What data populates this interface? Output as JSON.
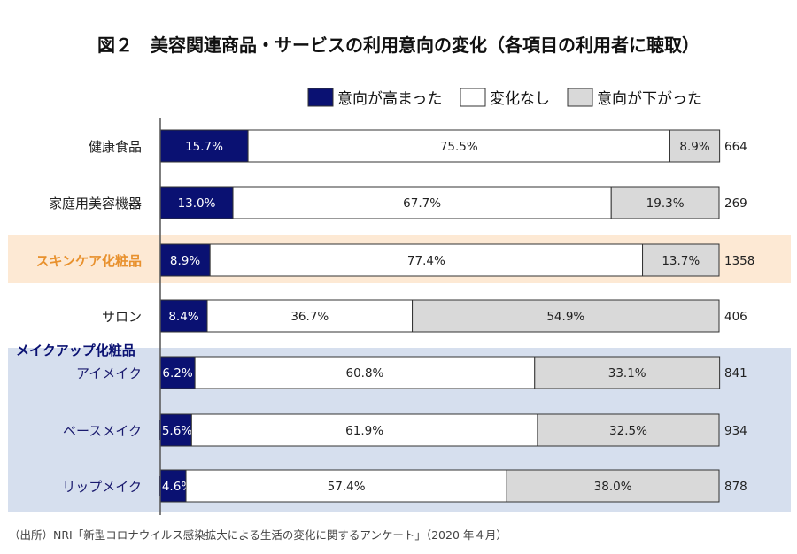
{
  "chart_data": {
    "type": "bar",
    "orientation": "horizontal",
    "stacked": "100%",
    "title": "図２　美容関連商品・サービスの利用意向の変化（各項目の利用者に聴取）",
    "legend": {
      "placement": "top-right",
      "entries": [
        "意向が高まった",
        "変化なし",
        "意向が下がった"
      ]
    },
    "colors": [
      "#0a1172",
      "#ffffff",
      "#d9d9d9"
    ],
    "group_label": "メイクアップ化粧品",
    "categories": [
      "健康食品",
      "家庭用美容機器",
      "スキンケア化粧品",
      "サロン",
      "アイメイク",
      "ベースメイク",
      "リップメイク"
    ],
    "series": [
      {
        "name": "意向が高まった",
        "values": [
          15.7,
          13.0,
          8.9,
          8.4,
          6.2,
          5.6,
          4.6
        ],
        "labels": [
          "15.7%",
          "13.0%",
          "8.9%",
          "8.4%",
          "6.2%",
          "5.6%",
          "4.6%"
        ]
      },
      {
        "name": "変化なし",
        "values": [
          75.5,
          67.7,
          77.4,
          36.7,
          60.8,
          61.9,
          57.4
        ],
        "labels": [
          "75.5%",
          "67.7%",
          "77.4%",
          "36.7%",
          "60.8%",
          "61.9%",
          "57.4%"
        ]
      },
      {
        "name": "意向が下がった",
        "values": [
          8.9,
          19.3,
          13.7,
          54.9,
          33.1,
          32.5,
          38.0
        ],
        "labels": [
          "8.9%",
          "19.3%",
          "13.7%",
          "54.9%",
          "33.1%",
          "32.5%",
          "38.0%"
        ]
      }
    ],
    "n": [
      "664",
      "269",
      "1358",
      "406",
      "841",
      "934",
      "878"
    ],
    "highlight_orange": "#fde9d4",
    "highlight_blue": "#d6dfee",
    "xlim": [
      0,
      100
    ]
  },
  "source": "（出所）NRI「新型コロナウイルス感染拡大による生活の変化に関するアンケート」（2020 年４月）"
}
